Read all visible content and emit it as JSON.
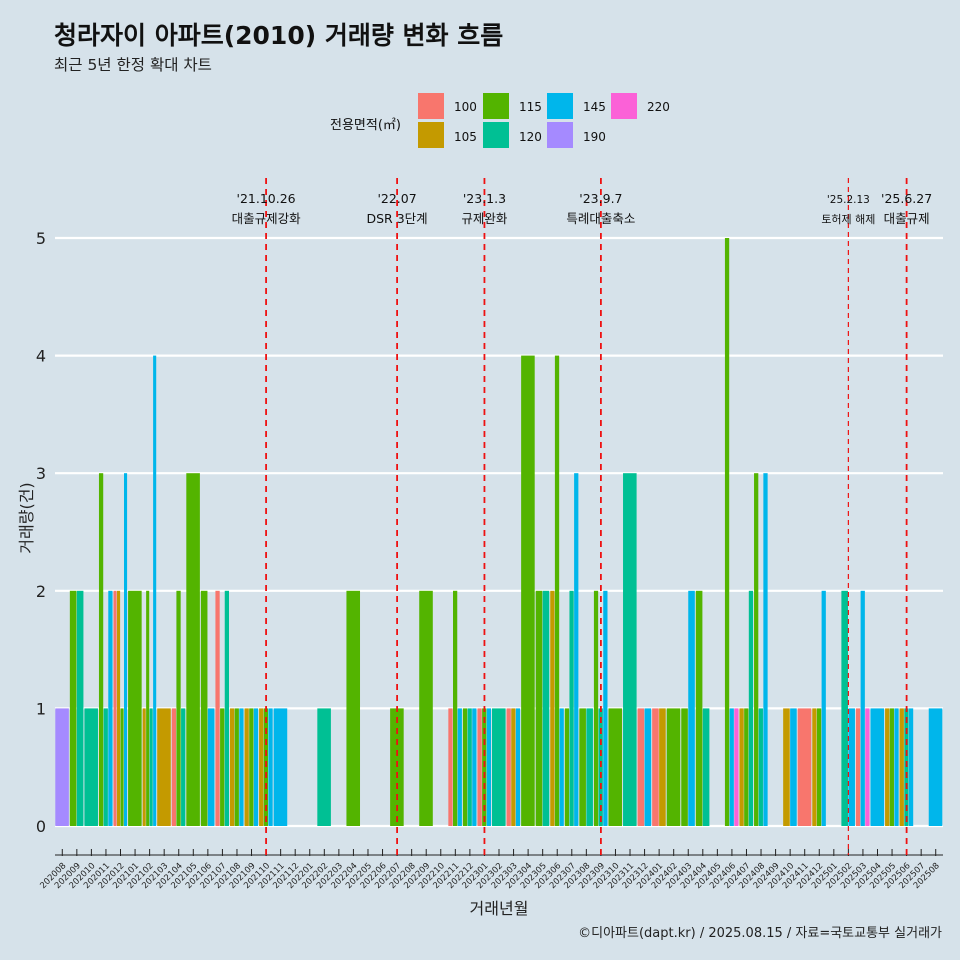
{
  "title": "청라자이 아파트(2010) 거래량 변화 흐름",
  "subtitle": "최근 5년 한정 확대 차트",
  "caption": "©디아파트(dapt.kr) / 2025.08.15 / 자료=국토교통부 실거래가",
  "legend": {
    "title": "전용면적(㎡)",
    "items": [
      {
        "label": "100",
        "color": "#f8766d"
      },
      {
        "label": "115",
        "color": "#53b400"
      },
      {
        "label": "145",
        "color": "#00b6eb"
      },
      {
        "label": "220",
        "color": "#fb61d7"
      },
      {
        "label": "105",
        "color": "#c49a00"
      },
      {
        "label": "120",
        "color": "#00c094"
      },
      {
        "label": "190",
        "color": "#a58aff"
      }
    ]
  },
  "chart_data": {
    "type": "bar",
    "stacking": "dodge",
    "xlabel": "거래년월",
    "ylabel": "거래량(건)",
    "ylim": [
      0,
      5
    ],
    "yticks": [
      0,
      1,
      2,
      3,
      4,
      5
    ],
    "categories": [
      "202008",
      "202009",
      "202010",
      "202011",
      "202012",
      "202101",
      "202102",
      "202103",
      "202104",
      "202105",
      "202106",
      "202107",
      "202108",
      "202109",
      "202110",
      "202111",
      "202112",
      "202201",
      "202202",
      "202203",
      "202204",
      "202205",
      "202206",
      "202207",
      "202208",
      "202209",
      "202210",
      "202211",
      "202212",
      "202301",
      "202302",
      "202303",
      "202304",
      "202305",
      "202306",
      "202307",
      "202308",
      "202309",
      "202310",
      "202311",
      "202312",
      "202401",
      "202402",
      "202403",
      "202404",
      "202405",
      "202406",
      "202407",
      "202408",
      "202409",
      "202410",
      "202411",
      "202412",
      "202501",
      "202502",
      "202503",
      "202504",
      "202505",
      "202506",
      "202507",
      "202508"
    ],
    "series_colors": {
      "100": "#f8766d",
      "105": "#c49a00",
      "115": "#53b400",
      "120": "#00c094",
      "145": "#00b6eb",
      "190": "#a58aff",
      "220": "#fb61d7"
    },
    "bars": [
      {
        "month": "202008",
        "values": {
          "190": 1
        }
      },
      {
        "month": "202009",
        "values": {
          "115": 2,
          "120": 2
        }
      },
      {
        "month": "202010",
        "values": {
          "120": 1
        }
      },
      {
        "month": "202011",
        "values": {
          "115": 3,
          "120": 1,
          "145": 2
        }
      },
      {
        "month": "202012",
        "values": {
          "100": 2,
          "105": 2,
          "115": 1,
          "145": 3
        }
      },
      {
        "month": "202101",
        "values": {
          "115": 2
        }
      },
      {
        "month": "202102",
        "values": {
          "105": 1,
          "115": 2,
          "120": 1,
          "145": 4
        }
      },
      {
        "month": "202103",
        "values": {
          "105": 1
        }
      },
      {
        "month": "202104",
        "values": {
          "100": 1,
          "115": 2,
          "120": 1
        }
      },
      {
        "month": "202105",
        "values": {
          "115": 3
        }
      },
      {
        "month": "202106",
        "values": {
          "115": 2,
          "145": 1
        }
      },
      {
        "month": "202107",
        "values": {
          "100": 2,
          "115": 1,
          "120": 2
        }
      },
      {
        "month": "202108",
        "values": {
          "105": 1,
          "115": 1,
          "145": 1
        }
      },
      {
        "month": "202109",
        "values": {
          "105": 1,
          "115": 1,
          "145": 1
        }
      },
      {
        "month": "202110",
        "values": {
          "105": 1,
          "115": 1,
          "145": 1
        }
      },
      {
        "month": "202111",
        "values": {
          "145": 1
        }
      },
      {
        "month": "202202",
        "values": {
          "120": 1
        }
      },
      {
        "month": "202204",
        "values": {
          "115": 2
        }
      },
      {
        "month": "202207",
        "values": {
          "115": 1
        }
      },
      {
        "month": "202209",
        "values": {
          "115": 2
        }
      },
      {
        "month": "202211",
        "values": {
          "100": 1,
          "115": 2,
          "145": 1
        }
      },
      {
        "month": "202212",
        "values": {
          "115": 1,
          "120": 1,
          "145": 1
        }
      },
      {
        "month": "202301",
        "values": {
          "100": 1,
          "115": 1,
          "145": 1
        }
      },
      {
        "month": "202302",
        "values": {
          "120": 1
        }
      },
      {
        "month": "202303",
        "values": {
          "100": 1,
          "105": 1,
          "145": 1
        }
      },
      {
        "month": "202304",
        "values": {
          "115": 4
        }
      },
      {
        "month": "202305",
        "values": {
          "115": 2,
          "120": 2
        }
      },
      {
        "month": "202306",
        "values": {
          "105": 2,
          "115": 4,
          "145": 1
        }
      },
      {
        "month": "202307",
        "values": {
          "115": 1,
          "120": 2,
          "145": 3
        }
      },
      {
        "month": "202308",
        "values": {
          "115": 1,
          "120": 1
        }
      },
      {
        "month": "202309",
        "values": {
          "115": 2,
          "120": 1,
          "145": 2
        }
      },
      {
        "month": "202310",
        "values": {
          "115": 1
        }
      },
      {
        "month": "202311",
        "values": {
          "120": 3
        }
      },
      {
        "month": "202312",
        "values": {
          "100": 1,
          "145": 1
        }
      },
      {
        "month": "202401",
        "values": {
          "100": 1,
          "105": 1
        }
      },
      {
        "month": "202402",
        "values": {
          "115": 1
        }
      },
      {
        "month": "202403",
        "values": {
          "115": 1,
          "145": 2
        }
      },
      {
        "month": "202404",
        "values": {
          "115": 2,
          "120": 1
        }
      },
      {
        "month": "202406",
        "values": {
          "115": 5,
          "145": 1,
          "220": 1
        }
      },
      {
        "month": "202407",
        "values": {
          "105": 1,
          "115": 1,
          "120": 2
        }
      },
      {
        "month": "202408",
        "values": {
          "115": 3,
          "120": 1,
          "145": 3
        }
      },
      {
        "month": "202410",
        "values": {
          "105": 1,
          "145": 1
        }
      },
      {
        "month": "202411",
        "values": {
          "100": 1
        }
      },
      {
        "month": "202412",
        "values": {
          "105": 1,
          "115": 1,
          "145": 2
        }
      },
      {
        "month": "202502",
        "values": {
          "120": 2,
          "145": 1
        }
      },
      {
        "month": "202503",
        "values": {
          "100": 1,
          "220": 1,
          "145": 2
        }
      },
      {
        "month": "202504",
        "values": {
          "145": 1
        }
      },
      {
        "month": "202505",
        "values": {
          "105": 1,
          "115": 1,
          "145": 1
        }
      },
      {
        "month": "202506",
        "values": {
          "105": 1,
          "120": 1,
          "145": 1
        }
      },
      {
        "month": "202508",
        "values": {
          "145": 1
        }
      }
    ],
    "annotations": [
      {
        "x": "202110",
        "date": "'21.10.26",
        "label": "대출규제강화",
        "style": "dashed"
      },
      {
        "x": "202207",
        "date": "'22.07",
        "label": "DSR 3단계",
        "style": "dashed"
      },
      {
        "x": "202301",
        "date": "'23.1.3",
        "label": "규제완화",
        "style": "dashed"
      },
      {
        "x": "202309",
        "date": "'23.9.7",
        "label": "특례대출축소",
        "style": "dashed"
      },
      {
        "x": "202502",
        "date": "'25.2.13",
        "label": "토허제 해제",
        "style": "thin-dashed"
      },
      {
        "x": "202506",
        "date": "'25.6.27",
        "label": "대출규제",
        "style": "dashed"
      }
    ]
  }
}
